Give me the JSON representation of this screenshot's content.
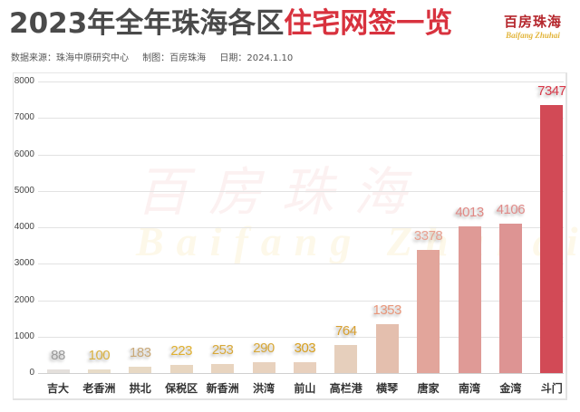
{
  "header": {
    "title_dark": "2023年全年珠海各区",
    "title_red": "住宅网签一览",
    "source": "数据来源：珠海中原研究中心",
    "maker": "制图：百房珠海",
    "date": "日期：2024.1.10"
  },
  "logo": {
    "cn": "百房珠海",
    "en": "Baifang Zhuhai"
  },
  "watermark": {
    "cn": "百房珠海",
    "en": "Baifang Zhuhai"
  },
  "colors": {
    "title_red": "#d8323e",
    "title_dark": "#4a4a4a"
  },
  "chart_data": {
    "type": "bar",
    "title": "2023年全年珠海各区住宅网签一览",
    "xlabel": "",
    "ylabel": "",
    "ylim": [
      0,
      8000
    ],
    "yticks": [
      0,
      1000,
      2000,
      3000,
      4000,
      5000,
      6000,
      7000,
      8000
    ],
    "grid": true,
    "legend": null,
    "categories": [
      "吉大",
      "老香洲",
      "拱北",
      "保税区",
      "新香洲",
      "洪湾",
      "前山",
      "高栏港",
      "横琴",
      "唐家",
      "南湾",
      "金湾",
      "斗门"
    ],
    "values": [
      88,
      100,
      183,
      223,
      253,
      290,
      303,
      764,
      1353,
      3378,
      4013,
      4106,
      7347
    ],
    "bar_colors": [
      "#e4e0dc",
      "#e8dcc8",
      "#e8d9c4",
      "#e8d6c0",
      "#e8d4bf",
      "#e8d2be",
      "#e8d0bd",
      "#e6cfbc",
      "#e4bfae",
      "#e2a59b",
      "#df9a96",
      "#dd9493",
      "#d24a56"
    ],
    "label_colors": [
      "#9a9a9a",
      "#d8b040",
      "#c8a878",
      "#e0b030",
      "#d8a838",
      "#d8a838",
      "#d8a020",
      "#d8a030",
      "#e8967a",
      "#e8a090",
      "#e08884",
      "#e08a88",
      "#d83848"
    ]
  }
}
